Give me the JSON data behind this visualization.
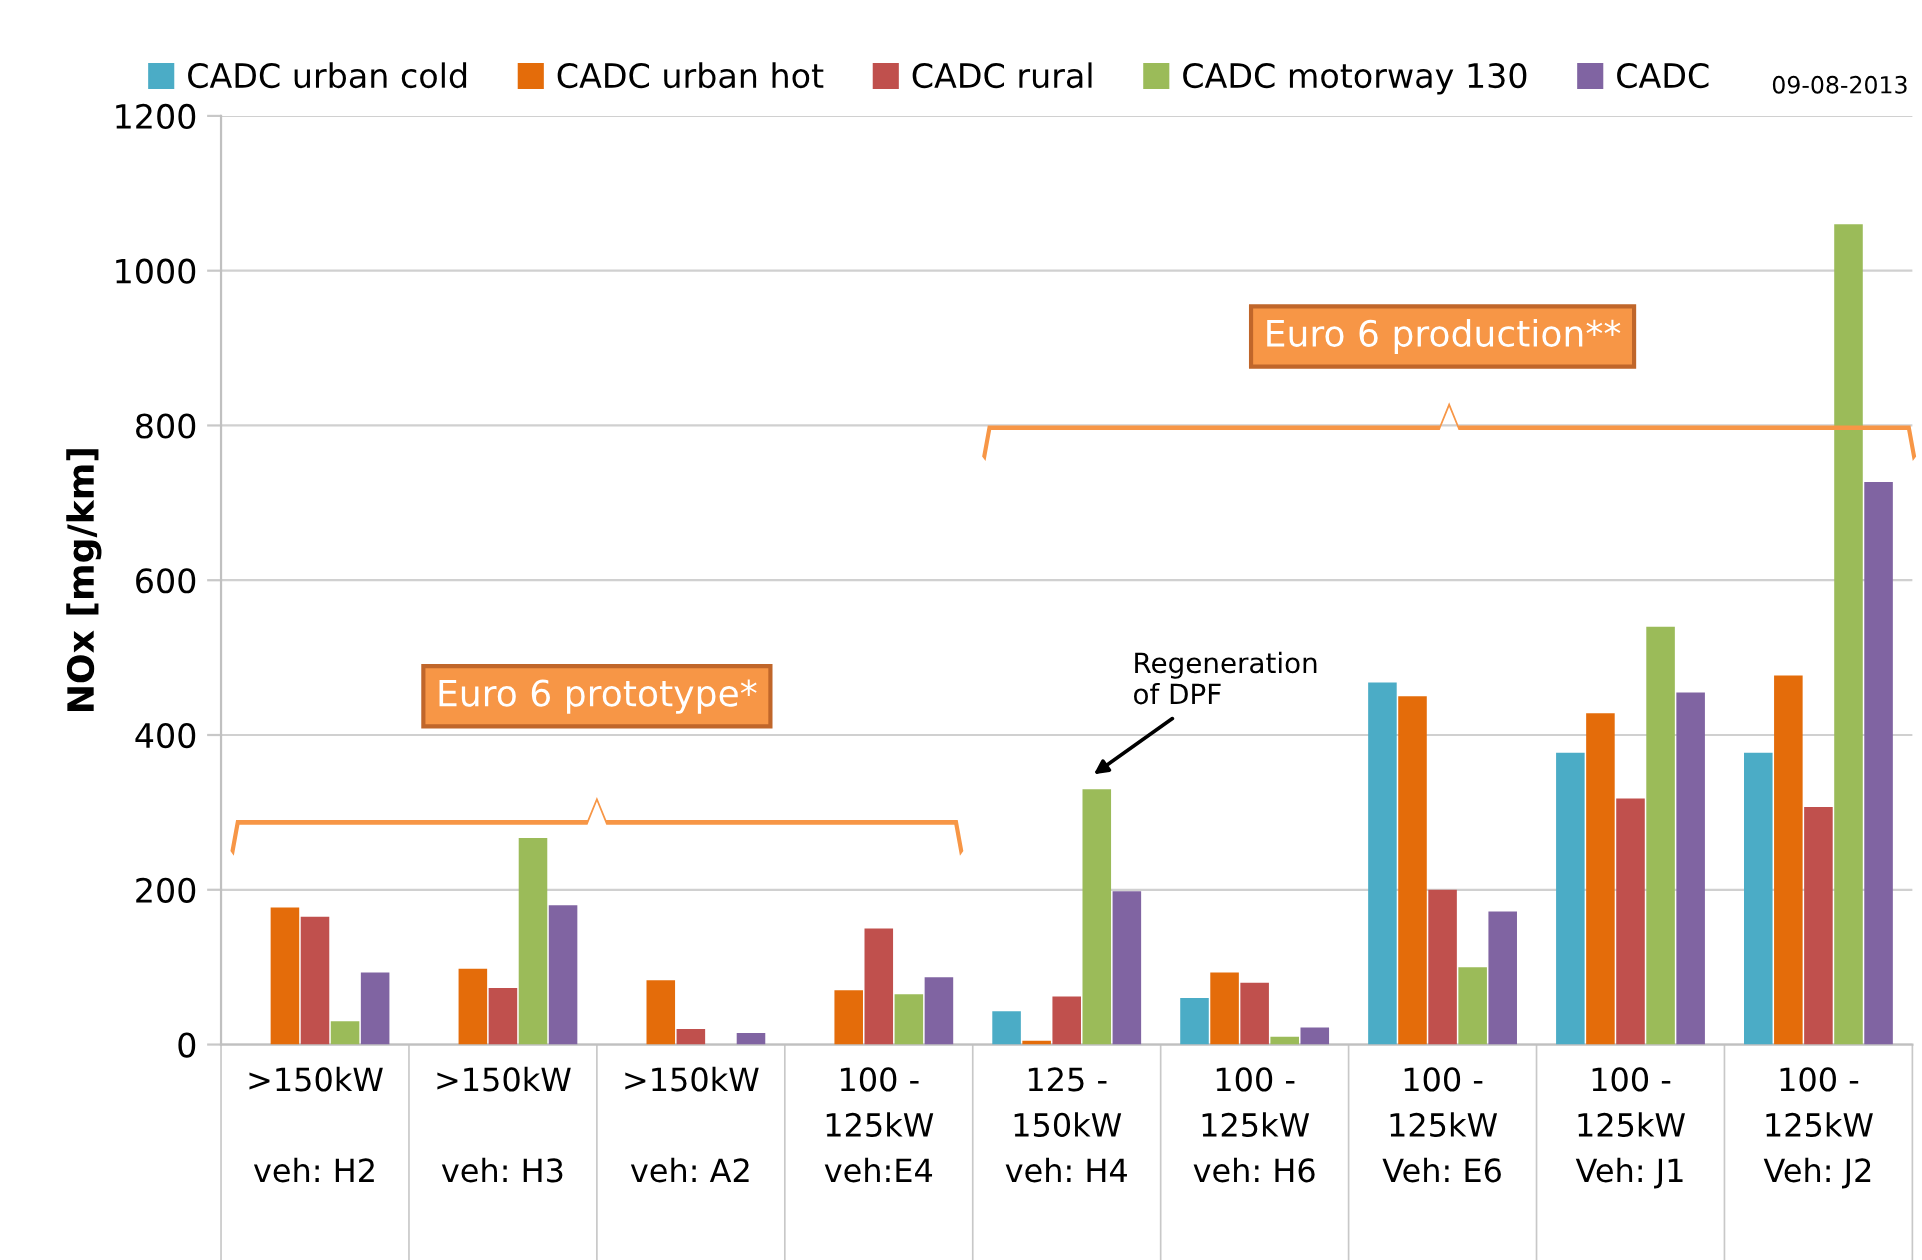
{
  "chart_data": {
    "type": "bar",
    "ylabel": "NOx [mg/km]",
    "categories": [
      ">150kW\n\nveh: H2",
      ">150kW\n\nveh: H3",
      ">150kW\n\nveh: A2",
      "100 -\n125kW\nveh:E4",
      "125 -\n150kW\nveh: H4",
      "100 -\n125kW\nveh: H6",
      "100 -\n125kW\nVeh: E6",
      "100 -\n125kW\nVeh: J1",
      "100 -\n125kW\nVeh: J2"
    ],
    "series": [
      {
        "name": "CADC urban cold",
        "color": "#4bacc6",
        "values": [
          null,
          null,
          null,
          null,
          43,
          60,
          468,
          377,
          377
        ]
      },
      {
        "name": "CADC urban hot",
        "color": "#e46c0a",
        "values": [
          177,
          98,
          83,
          70,
          5,
          93,
          450,
          428,
          477
        ]
      },
      {
        "name": "CADC rural",
        "color": "#c0504d",
        "values": [
          165,
          73,
          20,
          150,
          62,
          80,
          200,
          318,
          307
        ]
      },
      {
        "name": "CADC motorway 130",
        "color": "#9bbb59",
        "values": [
          30,
          267,
          null,
          65,
          330,
          10,
          100,
          540,
          1060
        ]
      },
      {
        "name": "CADC",
        "color": "#8064a2",
        "values": [
          93,
          180,
          15,
          87,
          198,
          22,
          172,
          455,
          727
        ]
      }
    ],
    "ylim": [
      0,
      1200
    ],
    "yticks": [
      0,
      200,
      400,
      600,
      800,
      1000,
      1200
    ],
    "grid": "y",
    "legend": "top",
    "annotations": [
      "Euro 6 prototype*",
      "Euro 6 production**",
      "Regeneration\nof DPF",
      "09-08-2013"
    ]
  }
}
